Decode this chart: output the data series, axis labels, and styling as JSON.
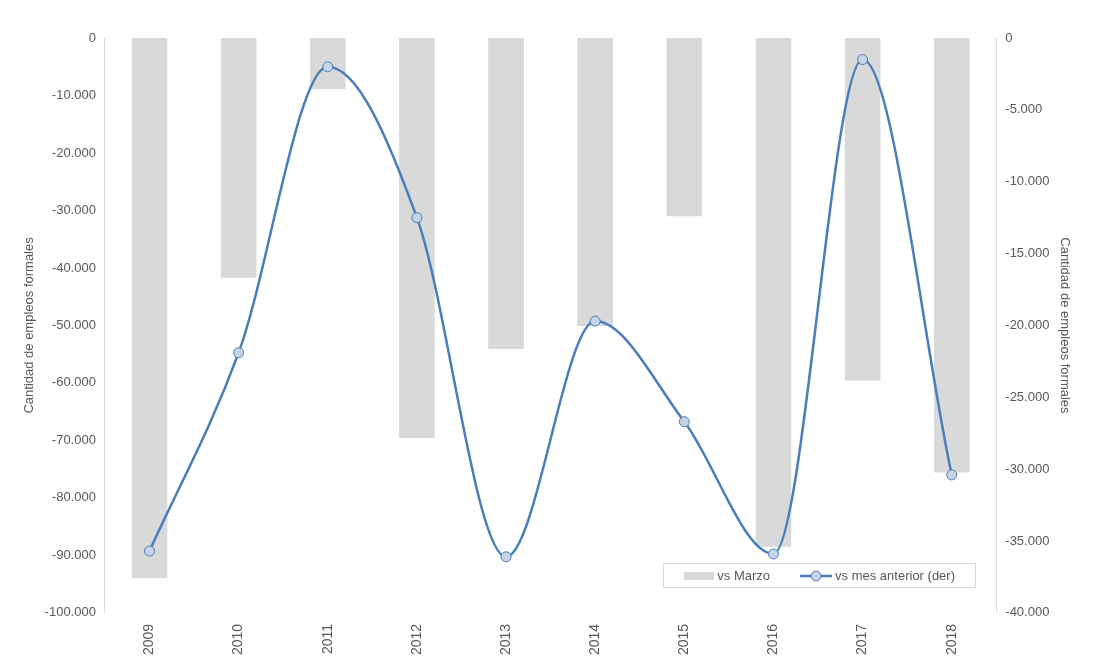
{
  "chart_data": {
    "type": "bar",
    "ylabel": "Cantidad de empleos formales",
    "y2label": "Cantidad de empleos formales",
    "categories": [
      "2009",
      "2010",
      "2011",
      "2012",
      "2013",
      "2014",
      "2015",
      "2016",
      "2017",
      "2018"
    ],
    "series": [
      {
        "name": "vs Marzo",
        "color": "#d9d9d9",
        "values": [
          -94000,
          -41700,
          -8900,
          -69600,
          -54100,
          -50100,
          -31000,
          -88500,
          -59600,
          -75600
        ]
      },
      {
        "name": "vs mes anterior (der)",
        "type": "line",
        "axis": "y2",
        "color": "#4a7ebb",
        "values": [
          -35700,
          -21900,
          -2000,
          -12500,
          -36100,
          -19700,
          -26700,
          -35900,
          -1500,
          -30400
        ]
      }
    ],
    "ylim": [
      -100000,
      0
    ],
    "yticks": [
      {
        "value": -100000,
        "label": "-100.000"
      },
      {
        "value": -90000,
        "label": "-90.000"
      },
      {
        "value": -80000,
        "label": "-80.000"
      },
      {
        "value": -70000,
        "label": "-70.000"
      },
      {
        "value": -60000,
        "label": "-60.000"
      },
      {
        "value": -50000,
        "label": "-50.000"
      },
      {
        "value": -40000,
        "label": "-40.000"
      },
      {
        "value": -30000,
        "label": "-30.000"
      },
      {
        "value": -20000,
        "label": "-20.000"
      },
      {
        "value": -10000,
        "label": "-10.000"
      },
      0
    ],
    "y2lim": [
      -40000,
      0
    ],
    "y2ticks": [
      {
        "value": -40000,
        "label": "-40.000"
      },
      {
        "value": -35000,
        "label": "-35.000"
      },
      {
        "value": -30000,
        "label": "-30.000"
      },
      {
        "value": -25000,
        "label": "-25.000"
      },
      {
        "value": -20000,
        "label": "-20.000"
      },
      {
        "value": -15000,
        "label": "-15.000"
      },
      {
        "value": -10000,
        "label": "-10.000"
      },
      {
        "value": -5000,
        "label": "-5.000"
      },
      0
    ],
    "grid": false,
    "legend": "bottom right",
    "marker": "circle",
    "line_style": "solid"
  }
}
